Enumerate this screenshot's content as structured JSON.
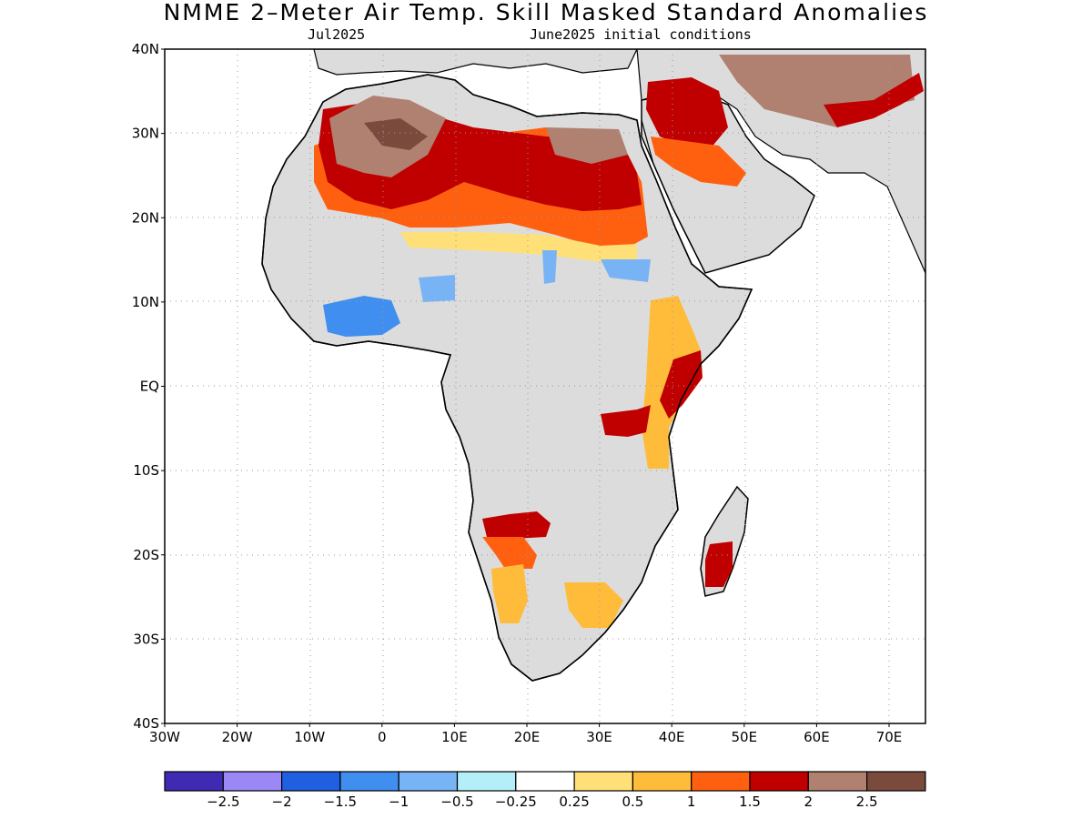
{
  "title": "NMME 2–Meter Air Temp. Skill Masked Standard Anomalies",
  "subtitle_left": "Jul2025",
  "subtitle_right": "June2025 initial conditions",
  "lat_labels": [
    "40N",
    "30N",
    "20N",
    "10N",
    "EQ",
    "10S",
    "20S",
    "30S",
    "40S"
  ],
  "lon_labels": [
    "30W",
    "20W",
    "10W",
    "0",
    "10E",
    "20E",
    "30E",
    "40E",
    "50E",
    "60E",
    "70E"
  ],
  "colorbar": {
    "colors": [
      "#3f2ab4",
      "#9b87f5",
      "#1f5fe0",
      "#3f8ef0",
      "#78b4f5",
      "#b4eef8",
      "#ffffff",
      "#ffe078",
      "#ffbb3a",
      "#ff6010",
      "#c00000",
      "#b08070",
      "#7a4a3c"
    ],
    "labels": [
      "−2.5",
      "−2",
      "−1.5",
      "−1",
      "−0.5",
      "−0.25",
      "0.25",
      "0.5",
      "1",
      "1.5",
      "2",
      "2.5"
    ]
  },
  "colors": {
    "land_no_signal": "#dcdcdc",
    "coast": "#000000",
    "grid": "#999999"
  }
}
